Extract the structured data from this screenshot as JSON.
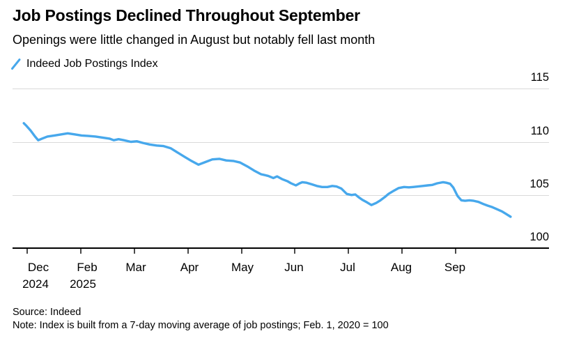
{
  "header": {
    "title": "Job Postings Declined Throughout September",
    "subtitle": "Openings were little changed in August but notably fell last month"
  },
  "legend": {
    "marker": "slash-icon",
    "label": "Indeed Job Postings Index"
  },
  "footer": {
    "source": "Source: Indeed",
    "note": "Note: Index is built from a 7-day moving average of job postings; Feb. 1, 2020 = 100"
  },
  "colors": {
    "line": "#47a8ec",
    "grid": "#d9d9d9",
    "axis": "#000000",
    "tick": "#4a4a4a",
    "text": "#000000"
  },
  "chart_data": {
    "type": "line",
    "title": "Job Postings Declined Throughout September",
    "subtitle": "Openings were little changed in August but notably fell last month",
    "ylabel": "",
    "xlabel": "",
    "baseline_note": "Index, Feb. 1, 2020 = 100",
    "grid": "horizontal",
    "legend_position": "top-left",
    "y_ticks": [
      100,
      105,
      110,
      115
    ],
    "ylim": [
      100,
      116
    ],
    "x_ticks": [
      {
        "label": "Dec",
        "year": "2024",
        "label_dx": 17,
        "year_dx": 13
      },
      {
        "label": "Feb",
        "year": "2025",
        "label_dx": 10,
        "year_dx": 4
      },
      {
        "label": "Mar",
        "label_dx": 3
      },
      {
        "label": "Apr",
        "label_dx": 3
      },
      {
        "label": "May",
        "label_dx": 2
      },
      {
        "label": "Jun",
        "label_dx": 0
      },
      {
        "label": "Jul",
        "label_dx": 0
      },
      {
        "label": "Aug",
        "label_dx": 0
      },
      {
        "label": "Sep",
        "label_dx": 0
      }
    ],
    "x_unit_note": "t = position in x-tick units (0 = Dec 2024 tick, 1 = Feb 2025 tick, ... 8 = Sep tick); series runs slightly past Sep (end of September 2025)",
    "series": [
      {
        "name": "Indeed Job Postings Index",
        "color": "#47a8ec",
        "points": [
          [
            -0.05,
            111.75
          ],
          [
            0,
            111.5
          ],
          [
            0.08,
            111.05
          ],
          [
            0.16,
            110.5
          ],
          [
            0.22,
            110.15
          ],
          [
            0.29,
            110.3
          ],
          [
            0.39,
            110.5
          ],
          [
            0.52,
            110.6
          ],
          [
            0.65,
            110.7
          ],
          [
            0.77,
            110.8
          ],
          [
            0.9,
            110.7
          ],
          [
            1.03,
            110.6
          ],
          [
            1.16,
            110.55
          ],
          [
            1.29,
            110.5
          ],
          [
            1.42,
            110.4
          ],
          [
            1.55,
            110.3
          ],
          [
            1.63,
            110.15
          ],
          [
            1.72,
            110.25
          ],
          [
            1.82,
            110.15
          ],
          [
            1.95,
            110.0
          ],
          [
            2.06,
            110.05
          ],
          [
            2.17,
            109.9
          ],
          [
            2.3,
            109.75
          ],
          [
            2.43,
            109.65
          ],
          [
            2.56,
            109.6
          ],
          [
            2.69,
            109.4
          ],
          [
            2.82,
            109.0
          ],
          [
            2.95,
            108.6
          ],
          [
            3.08,
            108.2
          ],
          [
            3.21,
            107.85
          ],
          [
            3.34,
            108.1
          ],
          [
            3.47,
            108.35
          ],
          [
            3.6,
            108.4
          ],
          [
            3.73,
            108.25
          ],
          [
            3.86,
            108.2
          ],
          [
            3.99,
            108.05
          ],
          [
            4.12,
            107.7
          ],
          [
            4.25,
            107.3
          ],
          [
            4.38,
            106.95
          ],
          [
            4.51,
            106.8
          ],
          [
            4.61,
            106.6
          ],
          [
            4.68,
            106.75
          ],
          [
            4.77,
            106.5
          ],
          [
            4.87,
            106.3
          ],
          [
            4.94,
            106.1
          ],
          [
            5.03,
            105.9
          ],
          [
            5.1,
            106.1
          ],
          [
            5.15,
            106.2
          ],
          [
            5.23,
            106.15
          ],
          [
            5.33,
            106.0
          ],
          [
            5.42,
            105.85
          ],
          [
            5.52,
            105.75
          ],
          [
            5.62,
            105.75
          ],
          [
            5.71,
            105.85
          ],
          [
            5.79,
            105.8
          ],
          [
            5.88,
            105.6
          ],
          [
            5.98,
            105.1
          ],
          [
            6.07,
            105.0
          ],
          [
            6.14,
            105.05
          ],
          [
            6.2,
            104.8
          ],
          [
            6.27,
            104.55
          ],
          [
            6.36,
            104.3
          ],
          [
            6.44,
            104.05
          ],
          [
            6.53,
            104.25
          ],
          [
            6.61,
            104.5
          ],
          [
            6.69,
            104.8
          ],
          [
            6.76,
            105.1
          ],
          [
            6.86,
            105.4
          ],
          [
            6.95,
            105.65
          ],
          [
            7.05,
            105.75
          ],
          [
            7.14,
            105.72
          ],
          [
            7.22,
            105.75
          ],
          [
            7.31,
            105.8
          ],
          [
            7.4,
            105.85
          ],
          [
            7.49,
            105.9
          ],
          [
            7.58,
            105.95
          ],
          [
            7.67,
            106.1
          ],
          [
            7.78,
            106.2
          ],
          [
            7.84,
            106.15
          ],
          [
            7.91,
            106.05
          ],
          [
            7.97,
            105.7
          ],
          [
            8.05,
            104.9
          ],
          [
            8.12,
            104.5
          ],
          [
            8.19,
            104.45
          ],
          [
            8.27,
            104.5
          ],
          [
            8.35,
            104.45
          ],
          [
            8.44,
            104.35
          ],
          [
            8.53,
            104.15
          ],
          [
            8.61,
            104.0
          ],
          [
            8.7,
            103.85
          ],
          [
            8.79,
            103.65
          ],
          [
            8.88,
            103.45
          ],
          [
            8.96,
            103.2
          ],
          [
            9.04,
            102.95
          ]
        ]
      }
    ]
  }
}
